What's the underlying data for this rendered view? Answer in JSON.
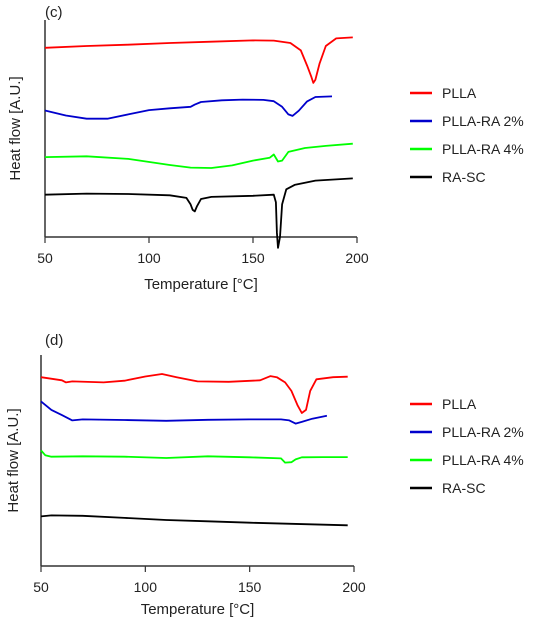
{
  "chart_data": [
    {
      "type": "line",
      "title": "(c)",
      "xlabel": "Temperature [°C]",
      "ylabel": "Heat flow [A.U.]",
      "xlim": [
        50,
        200
      ],
      "xticks": [
        "50",
        "100",
        "150",
        "200"
      ],
      "yticks": [],
      "grid": false,
      "legend_position": "right",
      "series": [
        {
          "name": "PLLA",
          "color": "#ff0000",
          "points": [
            [
              50,
              0.872
            ],
            [
              70,
              0.88
            ],
            [
              90,
              0.886
            ],
            [
              110,
              0.894
            ],
            [
              130,
              0.9
            ],
            [
              150,
              0.906
            ],
            [
              160,
              0.905
            ],
            [
              168,
              0.894
            ],
            [
              173,
              0.86
            ],
            [
              176,
              0.79
            ],
            [
              178,
              0.74
            ],
            [
              179,
              0.71
            ],
            [
              180,
              0.725
            ],
            [
              182,
              0.8
            ],
            [
              185,
              0.88
            ],
            [
              190,
              0.915
            ],
            [
              198,
              0.92
            ]
          ]
        },
        {
          "name": "PLLA-RA 2%",
          "color": "#0000cc",
          "points": [
            [
              50,
              0.583
            ],
            [
              60,
              0.56
            ],
            [
              70,
              0.545
            ],
            [
              80,
              0.545
            ],
            [
              90,
              0.565
            ],
            [
              100,
              0.585
            ],
            [
              110,
              0.593
            ],
            [
              120,
              0.6
            ],
            [
              122,
              0.61
            ],
            [
              125,
              0.622
            ],
            [
              135,
              0.63
            ],
            [
              145,
              0.633
            ],
            [
              155,
              0.632
            ],
            [
              160,
              0.626
            ],
            [
              164,
              0.6
            ],
            [
              167,
              0.565
            ],
            [
              169,
              0.558
            ],
            [
              172,
              0.582
            ],
            [
              176,
              0.625
            ],
            [
              180,
              0.645
            ],
            [
              188,
              0.648
            ]
          ]
        },
        {
          "name": "PLLA-RA 4%",
          "color": "#00ff00",
          "points": [
            [
              50,
              0.368
            ],
            [
              70,
              0.372
            ],
            [
              90,
              0.36
            ],
            [
              110,
              0.332
            ],
            [
              120,
              0.32
            ],
            [
              130,
              0.318
            ],
            [
              140,
              0.33
            ],
            [
              150,
              0.352
            ],
            [
              158,
              0.365
            ],
            [
              160,
              0.38
            ],
            [
              162,
              0.348
            ],
            [
              164,
              0.352
            ],
            [
              167,
              0.392
            ],
            [
              175,
              0.41
            ],
            [
              185,
              0.42
            ],
            [
              198,
              0.43
            ]
          ]
        },
        {
          "name": "RA-SC",
          "color": "#000000",
          "points": [
            [
              50,
              0.195
            ],
            [
              70,
              0.2
            ],
            [
              90,
              0.198
            ],
            [
              110,
              0.192
            ],
            [
              118,
              0.18
            ],
            [
              120,
              0.15
            ],
            [
              121,
              0.125
            ],
            [
              122,
              0.118
            ],
            [
              123,
              0.14
            ],
            [
              125,
              0.175
            ],
            [
              130,
              0.185
            ],
            [
              150,
              0.19
            ],
            [
              160,
              0.195
            ],
            [
              161,
              0.16
            ],
            [
              161.5,
              0.02
            ],
            [
              162,
              -0.05
            ],
            [
              163,
              0.0
            ],
            [
              164,
              0.15
            ],
            [
              166,
              0.22
            ],
            [
              170,
              0.24
            ],
            [
              180,
              0.26
            ],
            [
              198,
              0.27
            ]
          ]
        }
      ]
    },
    {
      "type": "line",
      "title": "(d)",
      "xlabel": "Temperature [°C]",
      "ylabel": "Heat flow [A.U.]",
      "xlim": [
        50,
        200
      ],
      "xticks": [
        "50",
        "100",
        "150",
        "200"
      ],
      "yticks": [],
      "grid": false,
      "legend_position": "right",
      "series": [
        {
          "name": "PLLA",
          "color": "#ff0000",
          "points": [
            [
              50,
              0.895
            ],
            [
              60,
              0.88
            ],
            [
              62,
              0.87
            ],
            [
              65,
              0.875
            ],
            [
              80,
              0.87
            ],
            [
              90,
              0.878
            ],
            [
              100,
              0.898
            ],
            [
              108,
              0.91
            ],
            [
              115,
              0.895
            ],
            [
              125,
              0.875
            ],
            [
              140,
              0.873
            ],
            [
              155,
              0.88
            ],
            [
              160,
              0.9
            ],
            [
              163,
              0.895
            ],
            [
              167,
              0.87
            ],
            [
              170,
              0.83
            ],
            [
              173,
              0.76
            ],
            [
              175,
              0.725
            ],
            [
              177,
              0.74
            ],
            [
              179,
              0.83
            ],
            [
              182,
              0.885
            ],
            [
              190,
              0.895
            ],
            [
              197,
              0.897
            ]
          ]
        },
        {
          "name": "PLLA-RA 2%",
          "color": "#0000cc",
          "points": [
            [
              50,
              0.78
            ],
            [
              55,
              0.74
            ],
            [
              60,
              0.715
            ],
            [
              65,
              0.69
            ],
            [
              70,
              0.695
            ],
            [
              90,
              0.692
            ],
            [
              110,
              0.688
            ],
            [
              130,
              0.693
            ],
            [
              150,
              0.695
            ],
            [
              165,
              0.695
            ],
            [
              169,
              0.69
            ],
            [
              172,
              0.675
            ],
            [
              175,
              0.683
            ],
            [
              180,
              0.698
            ],
            [
              187,
              0.712
            ]
          ]
        },
        {
          "name": "PLLA-RA 4%",
          "color": "#00ff00",
          "points": [
            [
              50,
              0.548
            ],
            [
              52,
              0.525
            ],
            [
              55,
              0.518
            ],
            [
              70,
              0.52
            ],
            [
              90,
              0.518
            ],
            [
              110,
              0.512
            ],
            [
              130,
              0.52
            ],
            [
              150,
              0.515
            ],
            [
              165,
              0.51
            ],
            [
              167,
              0.49
            ],
            [
              170,
              0.492
            ],
            [
              172,
              0.505
            ],
            [
              175,
              0.515
            ],
            [
              185,
              0.516
            ],
            [
              197,
              0.516
            ]
          ]
        },
        {
          "name": "RA-SC",
          "color": "#000000",
          "points": [
            [
              50,
              0.235
            ],
            [
              55,
              0.24
            ],
            [
              70,
              0.238
            ],
            [
              90,
              0.228
            ],
            [
              110,
              0.218
            ],
            [
              130,
              0.212
            ],
            [
              150,
              0.205
            ],
            [
              170,
              0.2
            ],
            [
              197,
              0.193
            ]
          ]
        }
      ]
    }
  ]
}
